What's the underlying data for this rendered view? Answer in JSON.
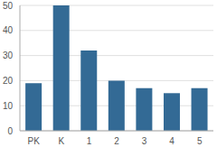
{
  "chart_data": {
    "type": "bar",
    "categories": [
      "PK",
      "K",
      "1",
      "2",
      "3",
      "4",
      "5"
    ],
    "values": [
      19,
      50,
      32,
      20,
      17,
      15,
      17
    ],
    "color": "#336a95",
    "ylim": [
      0,
      50
    ],
    "yticks": [
      0,
      10,
      20,
      30,
      40,
      50
    ],
    "grid": true
  }
}
